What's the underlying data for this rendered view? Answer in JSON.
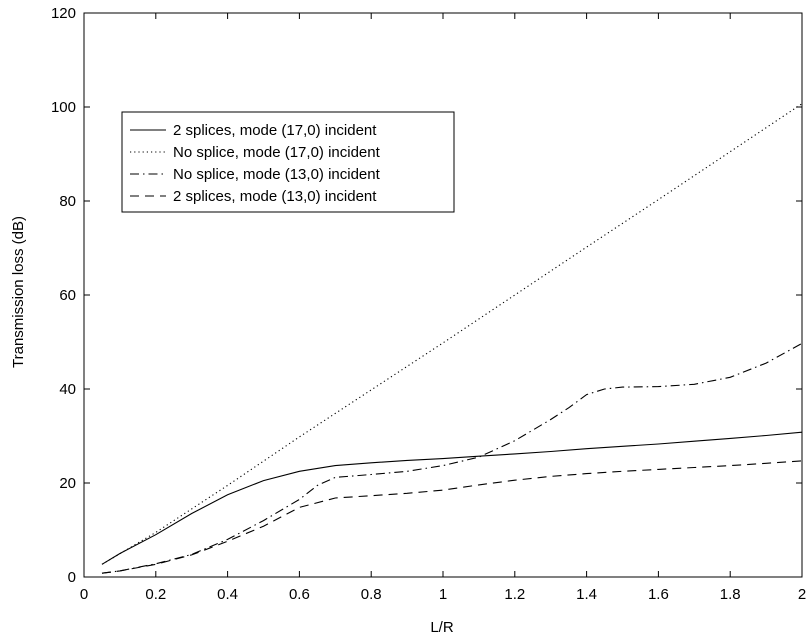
{
  "chart_data": {
    "type": "line",
    "title": "",
    "xlabel": "L/R",
    "ylabel": "Transmission loss (dB)",
    "xlim": [
      0,
      2
    ],
    "ylim": [
      0,
      120
    ],
    "xticks": [
      0,
      0.2,
      0.4,
      0.6,
      0.8,
      1,
      1.2,
      1.4,
      1.6,
      1.8,
      2
    ],
    "xtick_labels": [
      "0",
      "0.2",
      "0.4",
      "0.6",
      "0.8",
      "1",
      "1.2",
      "1.4",
      "1.6",
      "1.8",
      "2"
    ],
    "yticks": [
      0,
      20,
      40,
      60,
      80,
      100,
      120
    ],
    "ytick_labels": [
      "0",
      "20",
      "40",
      "60",
      "80",
      "100",
      "120"
    ],
    "grid": false,
    "legend_position": "top-left",
    "series": [
      {
        "name": "2 splices, mode (17,0) incident",
        "style": "solid",
        "x": [
          0.05,
          0.1,
          0.2,
          0.3,
          0.4,
          0.5,
          0.6,
          0.7,
          0.8,
          0.9,
          1.0,
          1.1,
          1.2,
          1.3,
          1.4,
          1.5,
          1.6,
          1.7,
          1.8,
          1.9,
          2.0
        ],
        "y": [
          2.7,
          5.0,
          9.0,
          13.5,
          17.5,
          20.5,
          22.5,
          23.7,
          24.3,
          24.8,
          25.2,
          25.7,
          26.2,
          26.7,
          27.3,
          27.8,
          28.3,
          28.9,
          29.5,
          30.1,
          30.8
        ]
      },
      {
        "name": "No splice, mode (17,0) incident",
        "style": "dotted",
        "x": [
          0.05,
          0.2,
          0.4,
          0.6,
          0.8,
          1.0,
          1.2,
          1.4,
          1.6,
          1.8,
          2.0
        ],
        "y": [
          2.7,
          9.5,
          19.5,
          29.8,
          39.8,
          49.8,
          60.0,
          70.2,
          80.3,
          90.5,
          100.7
        ]
      },
      {
        "name": "No splice, mode (13,0) incident",
        "style": "dash-dot",
        "x": [
          0.05,
          0.1,
          0.2,
          0.3,
          0.4,
          0.5,
          0.6,
          0.65,
          0.7,
          0.8,
          0.9,
          1.0,
          1.1,
          1.2,
          1.3,
          1.35,
          1.4,
          1.45,
          1.5,
          1.6,
          1.7,
          1.8,
          1.9,
          2.0
        ],
        "y": [
          0.8,
          1.3,
          2.8,
          4.8,
          8.0,
          12.0,
          16.5,
          19.5,
          21.2,
          21.8,
          22.5,
          23.7,
          25.5,
          29.0,
          33.5,
          36.0,
          38.8,
          40.0,
          40.4,
          40.5,
          41.0,
          42.5,
          45.5,
          49.7
        ]
      },
      {
        "name": "2 splices, mode (13,0) incident",
        "style": "dashed",
        "x": [
          0.05,
          0.1,
          0.2,
          0.3,
          0.4,
          0.5,
          0.6,
          0.7,
          0.8,
          0.9,
          1.0,
          1.1,
          1.2,
          1.3,
          1.4,
          1.5,
          1.6,
          1.7,
          1.8,
          1.9,
          2.0
        ],
        "y": [
          0.8,
          1.3,
          2.7,
          4.7,
          7.6,
          10.8,
          14.8,
          16.8,
          17.3,
          17.8,
          18.5,
          19.6,
          20.6,
          21.4,
          22.0,
          22.5,
          22.9,
          23.3,
          23.7,
          24.2,
          24.7
        ]
      }
    ]
  }
}
